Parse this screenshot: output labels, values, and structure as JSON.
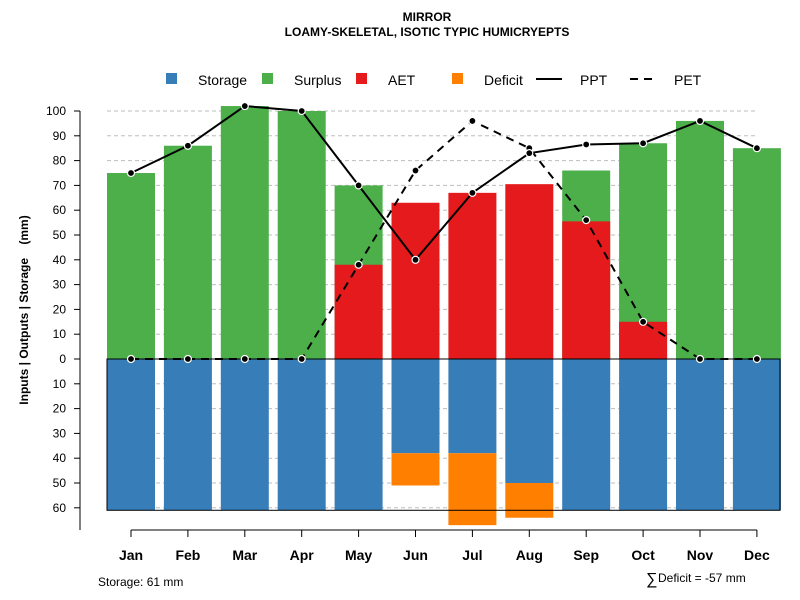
{
  "chart_data": {
    "type": "bar",
    "title": "MIRROR",
    "subtitle": "LOAMY-SKELETAL, ISOTIC TYPIC HUMICRYEPTS",
    "ylabel": "Inputs | Outputs | Storage    (mm)",
    "categories": [
      "Jan",
      "Feb",
      "Mar",
      "Apr",
      "May",
      "Jun",
      "Jul",
      "Aug",
      "Sep",
      "Oct",
      "Nov",
      "Dec"
    ],
    "yticks_upper": [
      0,
      10,
      20,
      30,
      40,
      50,
      60,
      70,
      80,
      90,
      100
    ],
    "yticks_lower": [
      10,
      20,
      30,
      40,
      50,
      60
    ],
    "ylim": [
      -61,
      102
    ],
    "grid": true,
    "legend": {
      "placement": "top",
      "entries": [
        {
          "label": "Storage",
          "kind": "square",
          "color": "#377EB8"
        },
        {
          "label": "Surplus",
          "kind": "square",
          "color": "#4DAF4A"
        },
        {
          "label": "AET",
          "kind": "square",
          "color": "#E41A1C"
        },
        {
          "label": "Deficit",
          "kind": "square",
          "color": "#FF7F00"
        },
        {
          "label": "PPT",
          "kind": "solid-line",
          "color": "#000000"
        },
        {
          "label": "PET",
          "kind": "dashed-line",
          "color": "#000000"
        }
      ]
    },
    "series": [
      {
        "name": "Surplus",
        "color": "#4DAF4A",
        "values": [
          75,
          86,
          102,
          100,
          70,
          0,
          0,
          0,
          76,
          87,
          96,
          85
        ]
      },
      {
        "name": "AET",
        "color": "#E41A1C",
        "values": [
          0,
          0,
          0,
          0,
          38,
          63,
          67,
          70.5,
          55.5,
          15,
          0,
          0
        ]
      },
      {
        "name": "Storage",
        "color": "#377EB8",
        "values": [
          61,
          61,
          61,
          61,
          61,
          38,
          38,
          50,
          61,
          61,
          61,
          61
        ]
      },
      {
        "name": "Deficit",
        "color": "#FF7F00",
        "values": [
          0,
          0,
          0,
          0,
          0,
          13,
          29,
          14,
          0,
          0,
          0,
          0
        ]
      },
      {
        "name": "PPT",
        "color": "#000000",
        "values": [
          75,
          86,
          102,
          100,
          70,
          40,
          67,
          83,
          86.5,
          87,
          96,
          85
        ]
      },
      {
        "name": "PET",
        "color": "#000000",
        "values": [
          0,
          0,
          0,
          0,
          38,
          76,
          96,
          85,
          56,
          15,
          0,
          0
        ]
      }
    ],
    "annotations": {
      "storage": "Storage: 61 mm",
      "deficit_symbol": "∑",
      "deficit": "Deficit = -57 mm"
    }
  }
}
